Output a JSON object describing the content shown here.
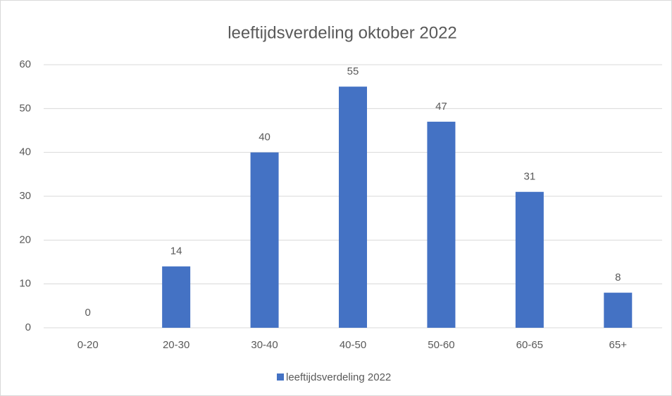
{
  "chart_data": {
    "type": "bar",
    "title": "leeftijdsverdeling oktober 2022",
    "categories": [
      "0-20",
      "20-30",
      "30-40",
      "40-50",
      "50-60",
      "60-65",
      "65+"
    ],
    "series": [
      {
        "name": "leeftijdsverdeling 2022",
        "color": "#4472c4",
        "values": [
          0,
          14,
          40,
          55,
          47,
          31,
          8
        ]
      }
    ],
    "ylim": [
      0,
      60
    ],
    "yticks": [
      0,
      10,
      20,
      30,
      40,
      50,
      60
    ],
    "grid": true,
    "legend": "bottom"
  }
}
